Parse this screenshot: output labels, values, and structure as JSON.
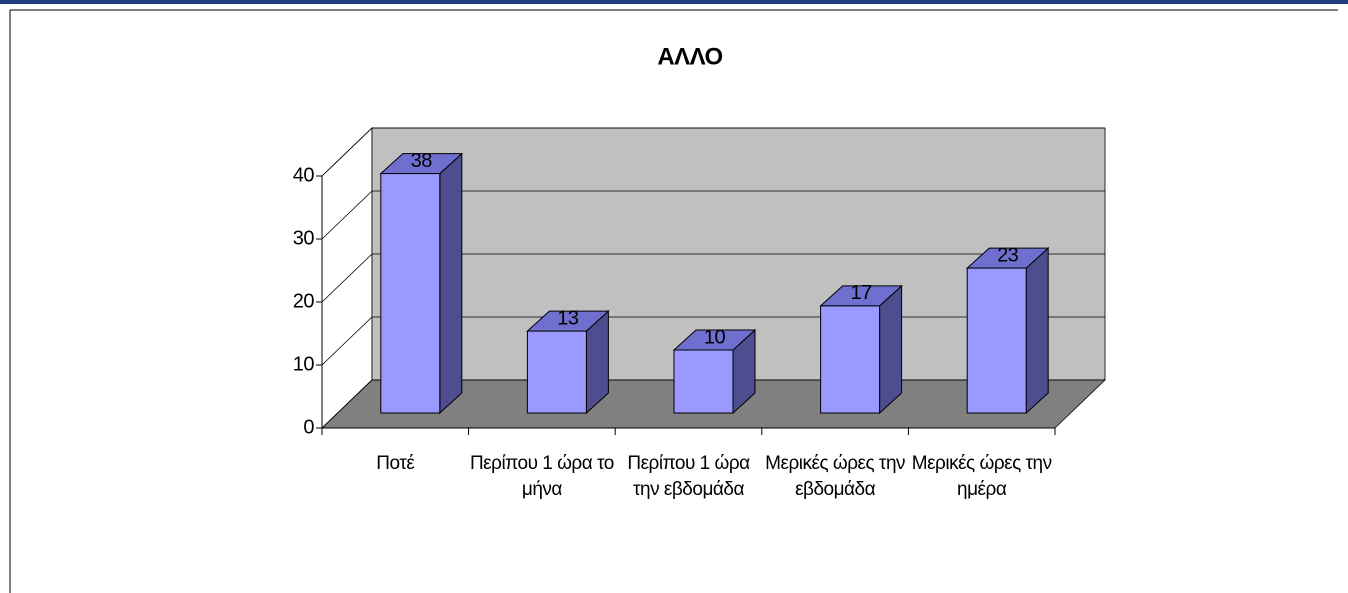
{
  "chart_data": {
    "type": "bar3d",
    "title": "ΑΛΛΟ",
    "categories": [
      "Ποτέ",
      "Περίπου 1 ώρα το μήνα",
      "Περίπου 1 ώρα την εβδομάδα",
      "Μερικές ώρες την εβδομάδα",
      "Μερικές ώρες την ημέρα"
    ],
    "values": [
      38,
      13,
      10,
      17,
      23
    ],
    "color": "#9999ff",
    "ylim": [
      0,
      40
    ],
    "yticks": [
      0,
      10,
      20,
      30,
      40
    ],
    "grid": true
  }
}
